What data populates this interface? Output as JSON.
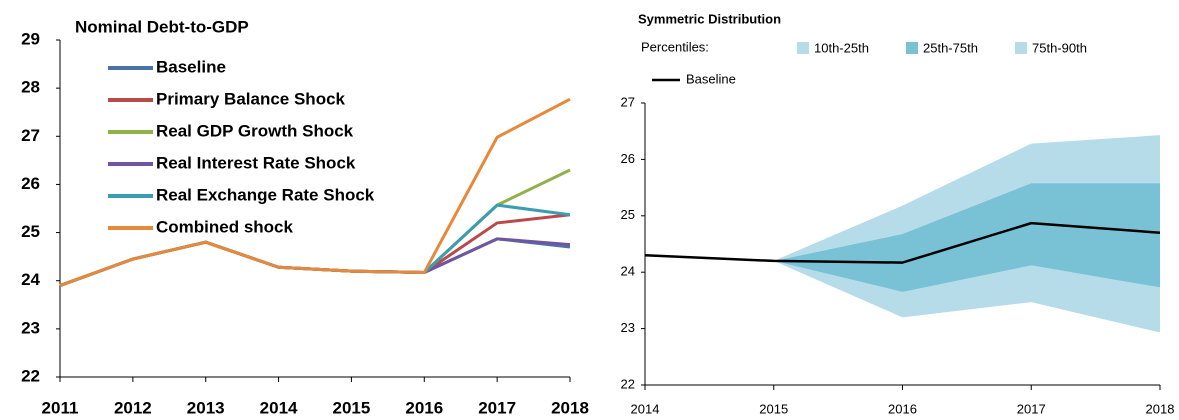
{
  "chart_data": [
    {
      "type": "line",
      "title": "Nominal Debt-to-GDP",
      "x": [
        2011,
        2012,
        2013,
        2014,
        2015,
        2016,
        2017,
        2018
      ],
      "xlim": [
        2011,
        2018
      ],
      "xticks": [
        2011,
        2012,
        2013,
        2014,
        2015,
        2016,
        2017,
        2018
      ],
      "ylim": [
        22,
        29
      ],
      "yticks": [
        22,
        23,
        24,
        25,
        26,
        27,
        28,
        29
      ],
      "series": [
        {
          "name": "Baseline",
          "color": "#4a72a8",
          "values": [
            23.9,
            24.45,
            24.8,
            24.28,
            24.2,
            24.17,
            24.87,
            24.7
          ]
        },
        {
          "name": "Primary Balance Shock",
          "color": "#b94a48",
          "values": [
            23.9,
            24.45,
            24.8,
            24.28,
            24.2,
            24.17,
            25.2,
            25.37
          ]
        },
        {
          "name": "Real GDP Growth Shock",
          "color": "#8fb04a",
          "values": [
            23.9,
            24.45,
            24.8,
            24.28,
            24.2,
            24.17,
            25.57,
            26.3
          ]
        },
        {
          "name": "Real Interest Rate Shock",
          "color": "#6f56a0",
          "values": [
            23.9,
            24.45,
            24.8,
            24.28,
            24.2,
            24.17,
            24.87,
            24.75
          ]
        },
        {
          "name": "Real Exchange Rate Shock",
          "color": "#3a9db0",
          "values": [
            23.9,
            24.45,
            24.8,
            24.28,
            24.2,
            24.17,
            25.57,
            25.37
          ]
        },
        {
          "name": "Combined shock",
          "color": "#e8883a",
          "values": [
            23.9,
            24.45,
            24.8,
            24.28,
            24.2,
            24.17,
            26.98,
            27.77
          ]
        }
      ]
    },
    {
      "type": "fan",
      "title": "Symmetric Distribution",
      "legend_title": "Percentiles:",
      "x": [
        2014,
        2015,
        2016,
        2017,
        2018
      ],
      "xlim": [
        2014,
        2018
      ],
      "xticks": [
        2014,
        2015,
        2016,
        2017,
        2018
      ],
      "ylim": [
        22,
        27
      ],
      "yticks": [
        22,
        23,
        24,
        25,
        26,
        27
      ],
      "bands": [
        {
          "name": "10th-25th",
          "color": "#b5dce8",
          "lower": [
            null,
            24.2,
            23.2,
            23.47,
            22.93
          ],
          "upper": [
            null,
            24.2,
            23.65,
            24.12,
            23.73
          ]
        },
        {
          "name": "25th-75th",
          "color": "#79c2d6",
          "lower": [
            null,
            24.2,
            23.65,
            24.12,
            23.73
          ],
          "upper": [
            null,
            24.2,
            24.68,
            25.58,
            25.58
          ]
        },
        {
          "name": "75th-90th",
          "color": "#b5dce8",
          "lower": [
            null,
            24.2,
            24.68,
            25.58,
            25.58
          ],
          "upper": [
            null,
            24.2,
            25.18,
            26.28,
            26.43
          ]
        }
      ],
      "series": [
        {
          "name": "Baseline",
          "color": "#000000",
          "values": [
            24.3,
            24.2,
            24.17,
            24.87,
            24.7
          ]
        }
      ]
    }
  ]
}
